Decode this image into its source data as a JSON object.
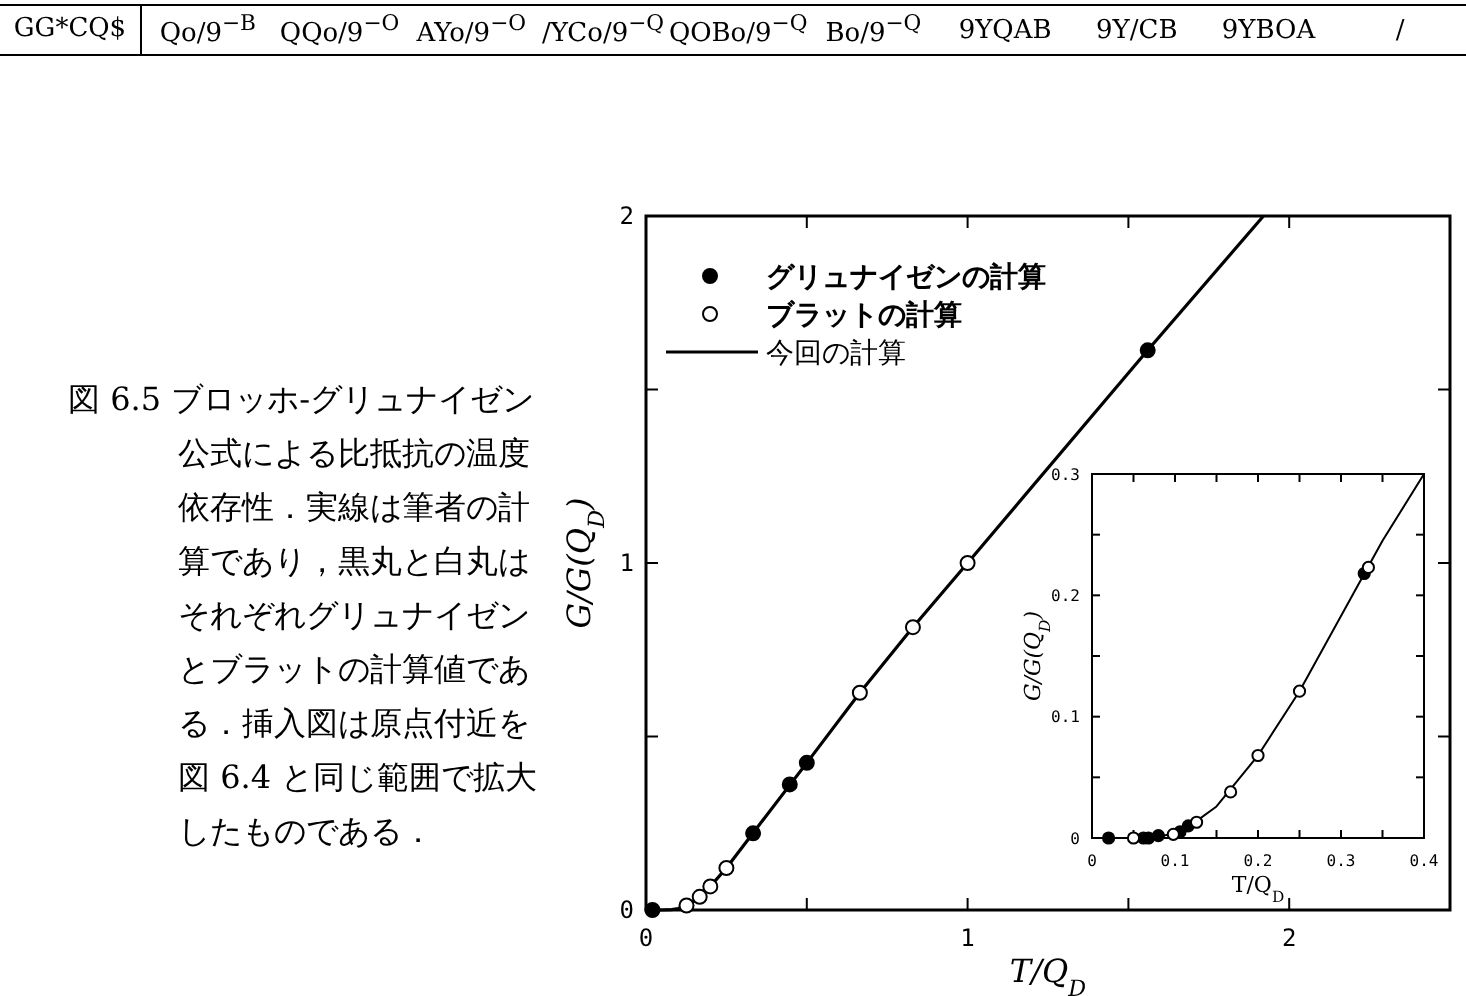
{
  "chart_data": [
    {
      "type": "other",
      "annotations": [
        "GG*CQ$",
        "Qo/9$^{−B}$",
        "QQo/9$^{−O}$",
        "AYo/9$^{−O}$",
        "/YCo/9$^{−Q}$",
        "QOBo/9$^{−Q}$",
        "Bo/9$^{−Q}$",
        "9YQAB",
        "9Y/CB",
        "9YBOA",
        "/"
      ]
    },
    {
      "type": "other",
      "annotations": [
        "図 6.5 ブロッホ-グリュナイゼン公式による比抵抗の温度依存性．実線は筆者の計算であり，黒丸と白丸はそれぞれグリュナイゼンとブラットの計算値である．挿入図は原点付近を図 6.4 と同じ範囲で拡大したものである．"
      ]
    },
    {
      "type": "line",
      "xlabel": "T/Q$_{D}$",
      "ylabel": "G/G(Q$_{D}$)",
      "xlim": [
        0,
        2.5
      ],
      "ylim": [
        0,
        2
      ],
      "xticks": [
        0,
        {
          "value": 0.5,
          "label": null
        },
        1,
        {
          "value": 1.5,
          "label": null
        },
        2
      ],
      "yticks": [
        0,
        {
          "value": 0.5,
          "label": null
        },
        1,
        {
          "value": 1.5,
          "label": null
        },
        2
      ],
      "legend": "top left",
      "series": [
        {
          "name": "グリュナイゼンの計算",
          "type": "scatter",
          "marker": "circle",
          "color": "#000000",
          "x": [
            0.02,
            0.333,
            0.447,
            0.5,
            1.56
          ],
          "values": [
            0,
            0.221,
            0.362,
            0.424,
            1.613
          ]
        },
        {
          "name": "ブラットの計算",
          "type": "scatter",
          "marker": "circle",
          "color": "#ffffff",
          "x": [
            0.126,
            0.167,
            0.2,
            0.25,
            0.665,
            0.83,
            1.0
          ],
          "values": [
            0.013,
            0.038,
            0.068,
            0.121,
            0.626,
            0.815,
            1.0
          ]
        },
        {
          "name": "今回の計算",
          "type": "line",
          "color": "#000000",
          "x": [
            0,
            0.05,
            0.08,
            0.1,
            0.12,
            0.15,
            0.2,
            0.25,
            0.333,
            0.5,
            0.665,
            0.83,
            1,
            1.56,
            1.92
          ],
          "values": [
            0,
            0,
            0.001,
            0.004,
            0.011,
            0.026,
            0.068,
            0.121,
            0.222,
            0.424,
            0.626,
            0.815,
            1,
            1.613,
            2
          ]
        }
      ]
    },
    {
      "type": "line",
      "xlabel": "T/Q$_{D}$",
      "ylabel": "G/G(Q$_{D}$)",
      "xlim": [
        0,
        0.4
      ],
      "ylim": [
        0,
        0.3
      ],
      "xticks": [
        0,
        {
          "value": 0.05,
          "label": null
        },
        0.1,
        {
          "value": 0.15,
          "label": null
        },
        0.2,
        {
          "value": 0.25,
          "label": null
        },
        0.3,
        {
          "value": 0.35,
          "label": null
        },
        0.4
      ],
      "yticks": [
        0,
        {
          "value": 0.05,
          "label": null
        },
        0.1,
        {
          "value": 0.15,
          "label": null
        },
        0.2,
        {
          "value": 0.25,
          "label": null
        },
        0.3
      ],
      "series": [
        {
          "type": "scatter",
          "marker": "circle",
          "color": "#000000",
          "x": [
            0.02,
            0.062,
            0.068,
            0.08,
            0.106,
            0.116,
            0.328
          ],
          "values": [
            0,
            0,
            0,
            0.002,
            0.005,
            0.01,
            0.218
          ]
        },
        {
          "type": "scatter",
          "marker": "circle",
          "color": "#ffffff",
          "x": [
            0.05,
            0.098,
            0.126,
            0.167,
            0.2,
            0.25,
            0.333
          ],
          "values": [
            0,
            0.003,
            0.013,
            0.038,
            0.068,
            0.121,
            0.223
          ]
        },
        {
          "type": "line",
          "color": "#000000",
          "x": [
            0,
            0.05,
            0.08,
            0.1,
            0.12,
            0.15,
            0.2,
            0.25,
            0.3,
            0.35,
            0.4
          ],
          "values": [
            0,
            0,
            0.001,
            0.004,
            0.011,
            0.026,
            0.068,
            0.121,
            0.183,
            0.245,
            0.3
          ]
        }
      ]
    }
  ]
}
